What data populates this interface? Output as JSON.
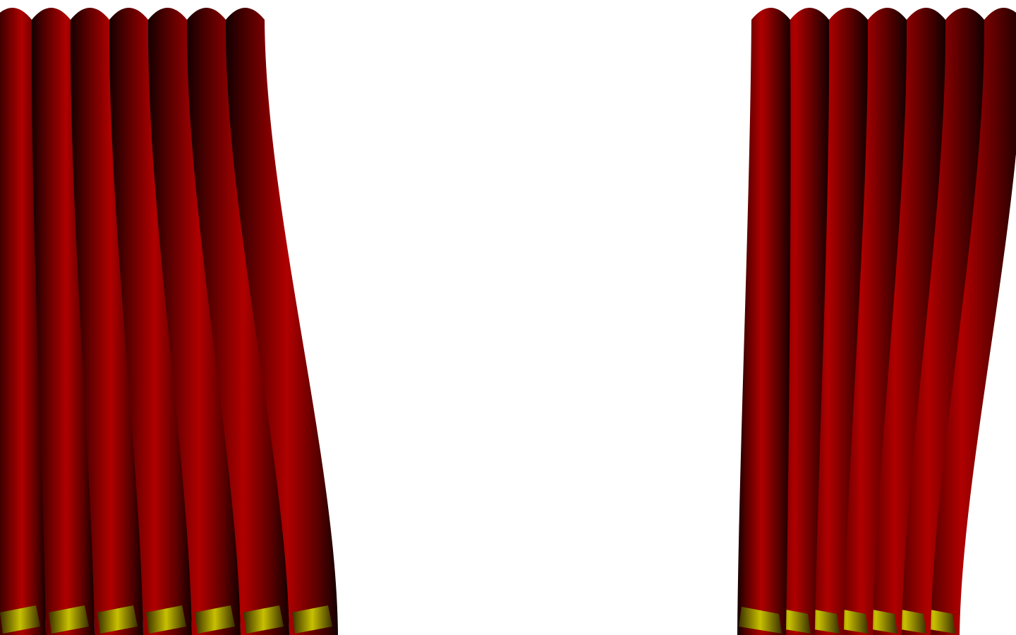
{
  "scene": {
    "background_color": "#ffffff",
    "colors": {
      "curtain_dark": "#140000",
      "curtain_mid": "#6a0000",
      "curtain_light": "#b00000",
      "trim_gold": "#c8c000",
      "trim_dark": "#3a3000"
    },
    "left_curtain": {
      "folds": 7
    },
    "right_curtain": {
      "folds": 7
    }
  }
}
